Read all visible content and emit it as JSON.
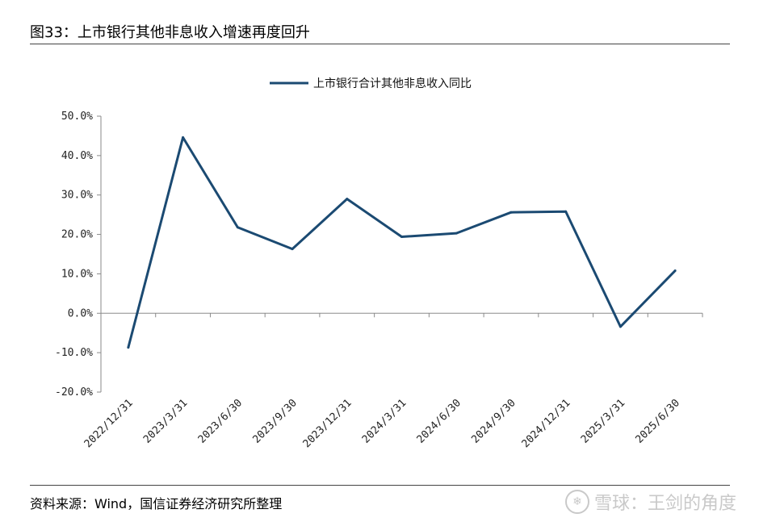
{
  "header": {
    "title": "图33：上市银行其他非息收入增速再度回升"
  },
  "footer": {
    "source": "资料来源：Wind，国信证券经济研究所整理",
    "watermark": "雪球：王剑的角度",
    "watermark_icon": "snowball-logo-icon"
  },
  "colors": {
    "series": "#1b4a72",
    "axis": "#8a8a8a",
    "rule": "#444444"
  },
  "chart_data": {
    "type": "line",
    "title": "",
    "xlabel": "",
    "ylabel": "",
    "categories": [
      "2022/12/31",
      "2023/3/31",
      "2023/6/30",
      "2023/9/30",
      "2023/12/31",
      "2024/3/31",
      "2024/6/30",
      "2024/9/30",
      "2024/12/31",
      "2025/3/31",
      "2025/6/30"
    ],
    "series": [
      {
        "name": "上市银行合计其他非息收入同比",
        "values": [
          -8.7,
          44.6,
          21.8,
          16.3,
          29.0,
          19.4,
          20.3,
          25.6,
          25.8,
          -3.4,
          10.8
        ]
      }
    ],
    "ylim": [
      -20,
      50
    ],
    "yticks": [
      -20,
      -10,
      0,
      10,
      20,
      30,
      40,
      50
    ],
    "ytick_labels": [
      "-20.0%",
      "-10.0%",
      "0.0%",
      "10.0%",
      "20.0%",
      "30.0%",
      "40.0%",
      "50.0%"
    ],
    "grid": false,
    "legend": "top-center"
  }
}
